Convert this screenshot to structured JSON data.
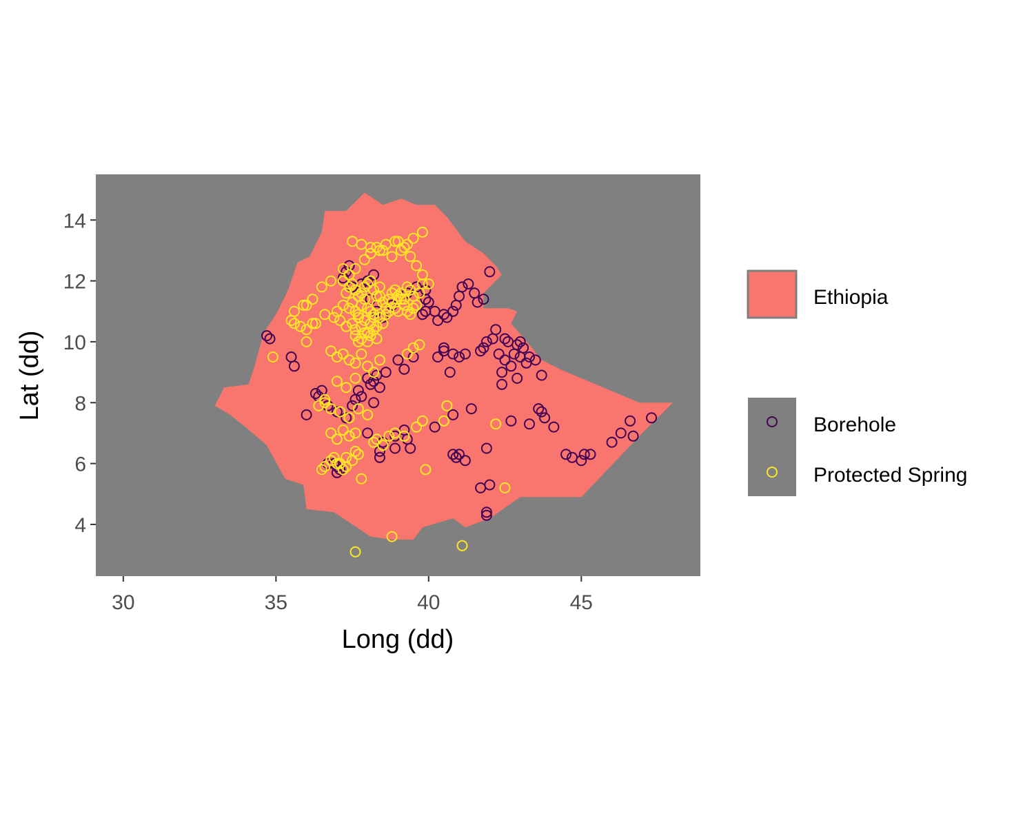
{
  "chart_data": {
    "type": "scatter",
    "title": "",
    "xlabel": "Long (dd)",
    "ylabel": "Lat (dd)",
    "xlim": [
      29.1,
      48.9
    ],
    "ylim": [
      2.3,
      15.5
    ],
    "xticks": [
      30,
      35,
      40,
      45
    ],
    "yticks": [
      4,
      6,
      8,
      10,
      12,
      14
    ],
    "grid": false,
    "panel_background": "#808080",
    "legend_position": "right",
    "region": {
      "name": "Ethiopia",
      "color": "#F8766D",
      "outline": [
        [
          33.0,
          7.9
        ],
        [
          33.3,
          8.5
        ],
        [
          34.1,
          8.6
        ],
        [
          34.3,
          9.2
        ],
        [
          34.6,
          10.3
        ],
        [
          35.0,
          10.9
        ],
        [
          35.4,
          11.7
        ],
        [
          35.7,
          12.6
        ],
        [
          36.1,
          12.8
        ],
        [
          36.5,
          13.6
        ],
        [
          36.6,
          14.3
        ],
        [
          37.3,
          14.3
        ],
        [
          37.9,
          14.9
        ],
        [
          38.5,
          14.5
        ],
        [
          39.1,
          14.7
        ],
        [
          39.6,
          14.5
        ],
        [
          40.2,
          14.5
        ],
        [
          40.6,
          14.1
        ],
        [
          41.2,
          13.3
        ],
        [
          41.8,
          12.9
        ],
        [
          42.2,
          12.5
        ],
        [
          42.4,
          12.2
        ],
        [
          41.8,
          11.6
        ],
        [
          41.8,
          11.1
        ],
        [
          42.6,
          11.1
        ],
        [
          42.9,
          11.0
        ],
        [
          42.7,
          10.6
        ],
        [
          43.3,
          9.9
        ],
        [
          43.7,
          9.4
        ],
        [
          44.3,
          9.1
        ],
        [
          46.9,
          8.0
        ],
        [
          48.0,
          8.0
        ],
        [
          47.0,
          7.0
        ],
        [
          45.0,
          4.9
        ],
        [
          44.0,
          4.9
        ],
        [
          43.0,
          4.9
        ],
        [
          42.0,
          4.2
        ],
        [
          41.2,
          3.9
        ],
        [
          40.8,
          4.2
        ],
        [
          39.8,
          3.9
        ],
        [
          39.5,
          3.5
        ],
        [
          38.8,
          3.5
        ],
        [
          38.1,
          3.6
        ],
        [
          37.2,
          4.2
        ],
        [
          36.9,
          4.4
        ],
        [
          36.0,
          4.5
        ],
        [
          35.9,
          5.3
        ],
        [
          35.3,
          5.5
        ],
        [
          34.7,
          6.6
        ],
        [
          34.0,
          7.2
        ],
        [
          33.5,
          7.6
        ],
        [
          33.0,
          7.9
        ]
      ]
    },
    "series": [
      {
        "name": "Borehole",
        "color": "#440154",
        "x": [
          37.2,
          37.3,
          37.4,
          37.2,
          37.5,
          37.8,
          38.0,
          38.2,
          38.1,
          38.3,
          38.5,
          38.8,
          39.3,
          39.6,
          39.9,
          39.9,
          39.8,
          39.9,
          40.0,
          40.2,
          40.3,
          40.5,
          40.6,
          40.8,
          40.9,
          41.0,
          41.1,
          41.3,
          41.5,
          41.6,
          41.8,
          42.0,
          42.2,
          42.5,
          42.6,
          42.9,
          43.0,
          43.1,
          43.3,
          43.5,
          42.1,
          41.9,
          41.8,
          41.7,
          42.3,
          42.5,
          42.8,
          43.0,
          43.2,
          42.7,
          42.4,
          43.7,
          42.9,
          42.4,
          40.3,
          40.5,
          40.8,
          41.0,
          41.2,
          40.7,
          40.5,
          40.8,
          41.0,
          40.9,
          41.2,
          41.9,
          41.9,
          41.9,
          42.7,
          43.3,
          43.6,
          43.7,
          43.8,
          44.1,
          44.5,
          44.7,
          45.0,
          45.1,
          45.3,
          46.0,
          46.3,
          46.6,
          46.7,
          47.3,
          34.7,
          34.8,
          35.5,
          35.6,
          36.0,
          36.3,
          36.5,
          36.4,
          36.6,
          36.7,
          37.0,
          37.3,
          37.5,
          37.6,
          37.8,
          37.7,
          38.0,
          38.2,
          38.3,
          38.1,
          38.0,
          38.5,
          38.4,
          38.4,
          38.9,
          38.9,
          39.2,
          39.4,
          39.3,
          38.6,
          38.4,
          38.2,
          39.0,
          39.2,
          39.5,
          40.2,
          40.8,
          41.4,
          41.7,
          42.0,
          37.0,
          37.1,
          36.9,
          37.0,
          36.6,
          36.7,
          36.5
        ],
        "y": [
          12.4,
          12.3,
          12.5,
          12.1,
          11.8,
          11.9,
          12.0,
          12.2,
          11.4,
          11.0,
          10.8,
          11.2,
          11.6,
          11.8,
          11.4,
          11.7,
          10.9,
          11.0,
          11.3,
          11.0,
          10.7,
          10.9,
          10.8,
          11.0,
          11.2,
          11.5,
          11.8,
          11.9,
          11.6,
          11.3,
          11.4,
          12.3,
          10.4,
          10.1,
          10.0,
          9.9,
          10.0,
          9.8,
          9.5,
          9.4,
          10.1,
          10.0,
          9.8,
          9.7,
          9.6,
          9.4,
          9.6,
          9.5,
          9.3,
          9.2,
          9.0,
          8.9,
          8.8,
          8.6,
          9.5,
          9.7,
          9.6,
          9.5,
          9.6,
          9.0,
          9.8,
          6.3,
          6.3,
          6.2,
          6.1,
          6.5,
          4.4,
          4.3,
          7.4,
          7.3,
          7.8,
          7.7,
          7.5,
          7.2,
          6.3,
          6.2,
          6.1,
          6.3,
          6.3,
          6.7,
          7.0,
          7.4,
          6.9,
          7.5,
          10.2,
          10.1,
          9.5,
          9.2,
          7.6,
          8.3,
          8.4,
          8.2,
          8.0,
          7.9,
          7.7,
          7.5,
          7.9,
          8.1,
          8.2,
          8.4,
          8.8,
          8.7,
          8.9,
          8.6,
          7.0,
          6.7,
          6.4,
          6.2,
          6.5,
          6.9,
          7.1,
          6.5,
          6.8,
          9.0,
          8.5,
          8.0,
          9.4,
          9.1,
          9.5,
          7.2,
          7.6,
          7.8,
          5.2,
          5.3,
          5.9,
          5.8,
          6.0,
          5.7,
          5.9,
          6.0,
          5.8
        ]
      },
      {
        "name": "Protected Spring",
        "color": "#FDE725",
        "x": [
          37.0,
          37.2,
          37.4,
          37.5,
          37.6,
          37.7,
          37.8,
          37.9,
          38.0,
          38.1,
          38.2,
          38.3,
          38.4,
          38.5,
          38.6,
          38.7,
          38.8,
          38.9,
          39.0,
          39.1,
          39.2,
          39.3,
          39.4,
          39.5,
          39.6,
          39.7,
          39.8,
          37.5,
          37.6,
          37.7,
          37.8,
          37.9,
          38.0,
          38.1,
          38.2,
          38.3,
          38.4,
          38.5,
          38.6,
          38.7,
          38.8,
          38.9,
          39.0,
          39.1,
          39.2,
          39.3,
          39.4,
          39.5,
          37.3,
          37.4,
          37.5,
          37.6,
          37.7,
          37.8,
          37.9,
          38.0,
          38.1,
          38.2,
          38.3,
          38.4,
          37.6,
          37.7,
          37.8,
          37.9,
          38.0,
          38.1,
          38.2,
          38.3,
          37.2,
          37.4,
          37.6,
          37.9,
          38.1,
          38.3,
          38.5,
          38.8,
          39.0,
          39.2,
          39.4,
          39.6,
          39.8,
          40.0,
          39.8,
          39.5,
          39.3,
          39.1,
          38.9,
          38.6,
          38.4,
          38.1,
          37.8,
          37.5,
          37.2,
          36.8,
          36.5,
          36.2,
          35.9,
          35.6,
          35.5,
          35.8,
          36.0,
          36.3,
          36.6,
          36.9,
          37.1,
          37.3,
          36.8,
          37.0,
          37.2,
          37.4,
          37.6,
          37.8,
          38.0,
          38.2,
          38.4,
          39.3,
          39.5,
          39.7,
          37.0,
          37.3,
          37.6,
          36.6,
          36.8,
          37.1,
          37.4,
          37.7,
          38.0,
          36.4,
          36.6,
          36.8,
          37.0,
          37.2,
          37.4,
          37.6,
          36.9,
          37.1,
          37.3,
          37.5,
          37.7,
          36.6,
          36.8,
          37.0,
          37.3,
          37.6,
          38.3,
          38.5,
          38.7,
          38.2,
          38.9,
          39.2,
          39.6,
          39.8,
          40.6,
          40.5,
          42.2,
          39.9,
          42.5,
          38.8,
          41.1,
          37.6,
          37.8,
          37.2,
          36.5,
          35.6,
          36.0,
          34.9,
          36.0,
          36.2
        ],
        "y": [
          11.0,
          11.2,
          11.1,
          11.3,
          11.0,
          10.9,
          11.2,
          11.4,
          11.1,
          11.0,
          10.8,
          11.2,
          11.5,
          11.3,
          11.1,
          11.4,
          11.6,
          11.7,
          11.5,
          11.6,
          11.4,
          11.8,
          11.7,
          11.5,
          11.2,
          11.6,
          11.9,
          10.6,
          10.4,
          10.8,
          10.5,
          10.7,
          10.3,
          10.6,
          10.9,
          10.5,
          10.8,
          10.6,
          10.9,
          11.0,
          11.3,
          11.1,
          11.0,
          11.4,
          11.2,
          11.0,
          10.9,
          11.1,
          11.6,
          11.8,
          11.9,
          11.7,
          11.5,
          11.6,
          11.8,
          11.9,
          12.0,
          11.7,
          11.5,
          11.8,
          10.2,
          10.0,
          10.1,
          10.3,
          10.0,
          10.2,
          10.4,
          10.1,
          12.0,
          12.2,
          12.4,
          12.7,
          12.9,
          13.1,
          13.0,
          12.8,
          13.3,
          13.1,
          12.8,
          12.5,
          12.2,
          11.9,
          13.6,
          13.4,
          13.2,
          13.0,
          13.3,
          13.2,
          13.0,
          13.1,
          13.2,
          13.3,
          12.4,
          12.0,
          11.8,
          11.4,
          11.2,
          11.0,
          10.7,
          10.5,
          10.4,
          10.6,
          10.9,
          10.8,
          10.7,
          10.5,
          9.7,
          9.5,
          9.6,
          9.4,
          9.3,
          9.6,
          9.2,
          9.0,
          9.4,
          9.6,
          9.8,
          9.9,
          8.7,
          8.5,
          8.8,
          8.0,
          7.8,
          7.7,
          7.5,
          7.8,
          7.6,
          7.9,
          8.1,
          7.0,
          6.8,
          7.1,
          6.9,
          7.0,
          6.2,
          6.0,
          5.9,
          6.1,
          6.3,
          5.9,
          6.1,
          6.0,
          6.2,
          6.4,
          6.8,
          6.6,
          6.9,
          6.7,
          7.0,
          6.9,
          7.2,
          7.4,
          7.9,
          7.4,
          7.3,
          5.8,
          5.2,
          3.6,
          3.3,
          3.1,
          5.5,
          5.8,
          5.8,
          10.6,
          10.0,
          9.5,
          11.2,
          10.6
        ]
      }
    ]
  }
}
